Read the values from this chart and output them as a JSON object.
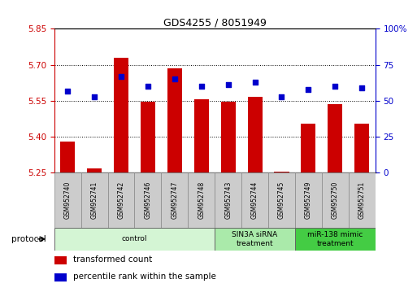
{
  "title": "GDS4255 / 8051949",
  "samples": [
    "GSM952740",
    "GSM952741",
    "GSM952742",
    "GSM952746",
    "GSM952747",
    "GSM952748",
    "GSM952743",
    "GSM952744",
    "GSM952745",
    "GSM952749",
    "GSM952750",
    "GSM952751"
  ],
  "transformed_count": [
    5.38,
    5.27,
    5.73,
    5.545,
    5.685,
    5.555,
    5.545,
    5.565,
    5.255,
    5.455,
    5.535,
    5.455
  ],
  "percentile_rank": [
    57,
    53,
    67,
    60,
    65,
    60,
    61,
    63,
    53,
    58,
    60,
    59
  ],
  "ylim_left": [
    5.25,
    5.85
  ],
  "ylim_right": [
    0,
    100
  ],
  "yticks_left": [
    5.25,
    5.4,
    5.55,
    5.7,
    5.85
  ],
  "yticks_right": [
    0,
    25,
    50,
    75,
    100
  ],
  "groups": [
    {
      "label": "control",
      "start": 0,
      "end": 5,
      "color": "#d4f5d4"
    },
    {
      "label": "SIN3A siRNA\ntreatment",
      "start": 6,
      "end": 8,
      "color": "#aaeaaa"
    },
    {
      "label": "miR-138 mimic\ntreatment",
      "start": 9,
      "end": 11,
      "color": "#44cc44"
    }
  ],
  "bar_color": "#cc0000",
  "dot_color": "#0000cc",
  "bar_width": 0.55,
  "baseline": 5.25,
  "grid_color": "#000000",
  "tick_color_left": "#cc0000",
  "tick_color_right": "#0000cc",
  "legend_items": [
    {
      "label": "transformed count",
      "color": "#cc0000"
    },
    {
      "label": "percentile rank within the sample",
      "color": "#0000cc"
    }
  ],
  "protocol_label": "protocol",
  "fig_width": 5.13,
  "fig_height": 3.54,
  "dpi": 100
}
